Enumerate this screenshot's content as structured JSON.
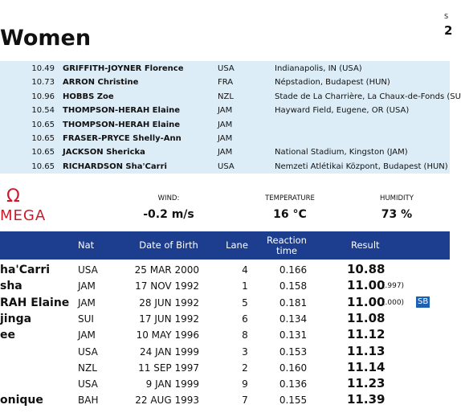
{
  "header": {
    "title": "Women",
    "corner_label": "S",
    "corner_value": "2"
  },
  "records": {
    "rows": [
      [
        "10.49",
        "GRIFFITH-JOYNER Florence",
        "USA",
        "Indianapolis, IN (USA)"
      ],
      [
        "10.73",
        "ARRON Christine",
        "FRA",
        "Népstadion, Budapest (HUN)"
      ],
      [
        "10.96",
        "HOBBS Zoe",
        "NZL",
        "Stade de La Charrière, La Chaux-de-Fonds (SU"
      ],
      [
        "10.54",
        "THOMPSON-HERAH Elaine",
        "JAM",
        "Hayward Field, Eugene, OR (USA)"
      ],
      [
        "10.65",
        "THOMPSON-HERAH Elaine",
        "JAM"
      ],
      [
        "10.65",
        "FRASER-PRYCE Shelly-Ann",
        "JAM"
      ],
      [
        "10.65",
        "JACKSON Shericka",
        "JAM",
        "National Stadium, Kingston (JAM)"
      ],
      [
        "10.65",
        "RICHARDSON Sha'Carri",
        "USA",
        "Nemzeti Atlétikai Központ, Budapest (HUN)"
      ]
    ]
  },
  "logo": {
    "symbol": "Ω",
    "text": "MEGA"
  },
  "conditions": [
    {
      "label": "WIND:",
      "value": "-0.2 m/s"
    },
    {
      "label": "TEMPERATURE",
      "value": "16 °C"
    },
    {
      "label": "HUMIDITY",
      "value": "73 %"
    }
  ],
  "table": {
    "columns": [
      "Nat",
      "Date of Birth",
      "Lane",
      "Reaction time",
      "Result"
    ],
    "rows": [
      {
        "name": "ha'Carri",
        "nat": "USA",
        "dob": "25 MAR 2000",
        "lane": "4",
        "reaction": "0.166",
        "result": "10.88"
      },
      {
        "name": "sha",
        "nat": "JAM",
        "dob": "17 NOV 1992",
        "lane": "1",
        "reaction": "0.158",
        "result": "11.00",
        "note": "(.997)"
      },
      {
        "name": "RAH Elaine",
        "nat": "JAM",
        "dob": "28 JUN 1992",
        "lane": "5",
        "reaction": "0.181",
        "result": "11.00",
        "note": "(.000)",
        "badge": "SB"
      },
      {
        "name": "jinga",
        "nat": "SUI",
        "dob": "17 JUN 1992",
        "lane": "6",
        "reaction": "0.134",
        "result": "11.08"
      },
      {
        "name": "ee",
        "nat": "JAM",
        "dob": "10 MAY 1996",
        "lane": "8",
        "reaction": "0.131",
        "result": "11.12"
      },
      {
        "nat": "USA",
        "dob": "24 JAN 1999",
        "lane": "3",
        "reaction": "0.153",
        "result": "11.13"
      },
      {
        "nat": "NZL",
        "dob": "11 SEP 1997",
        "lane": "2",
        "reaction": "0.160",
        "result": "11.14"
      },
      {
        "nat": "USA",
        "dob": "9 JAN 1999",
        "lane": "9",
        "reaction": "0.136",
        "result": "11.23"
      },
      {
        "name": "onique",
        "nat": "BAH",
        "dob": "22 AUG 1993",
        "lane": "7",
        "reaction": "0.155",
        "result": "11.39"
      }
    ]
  }
}
